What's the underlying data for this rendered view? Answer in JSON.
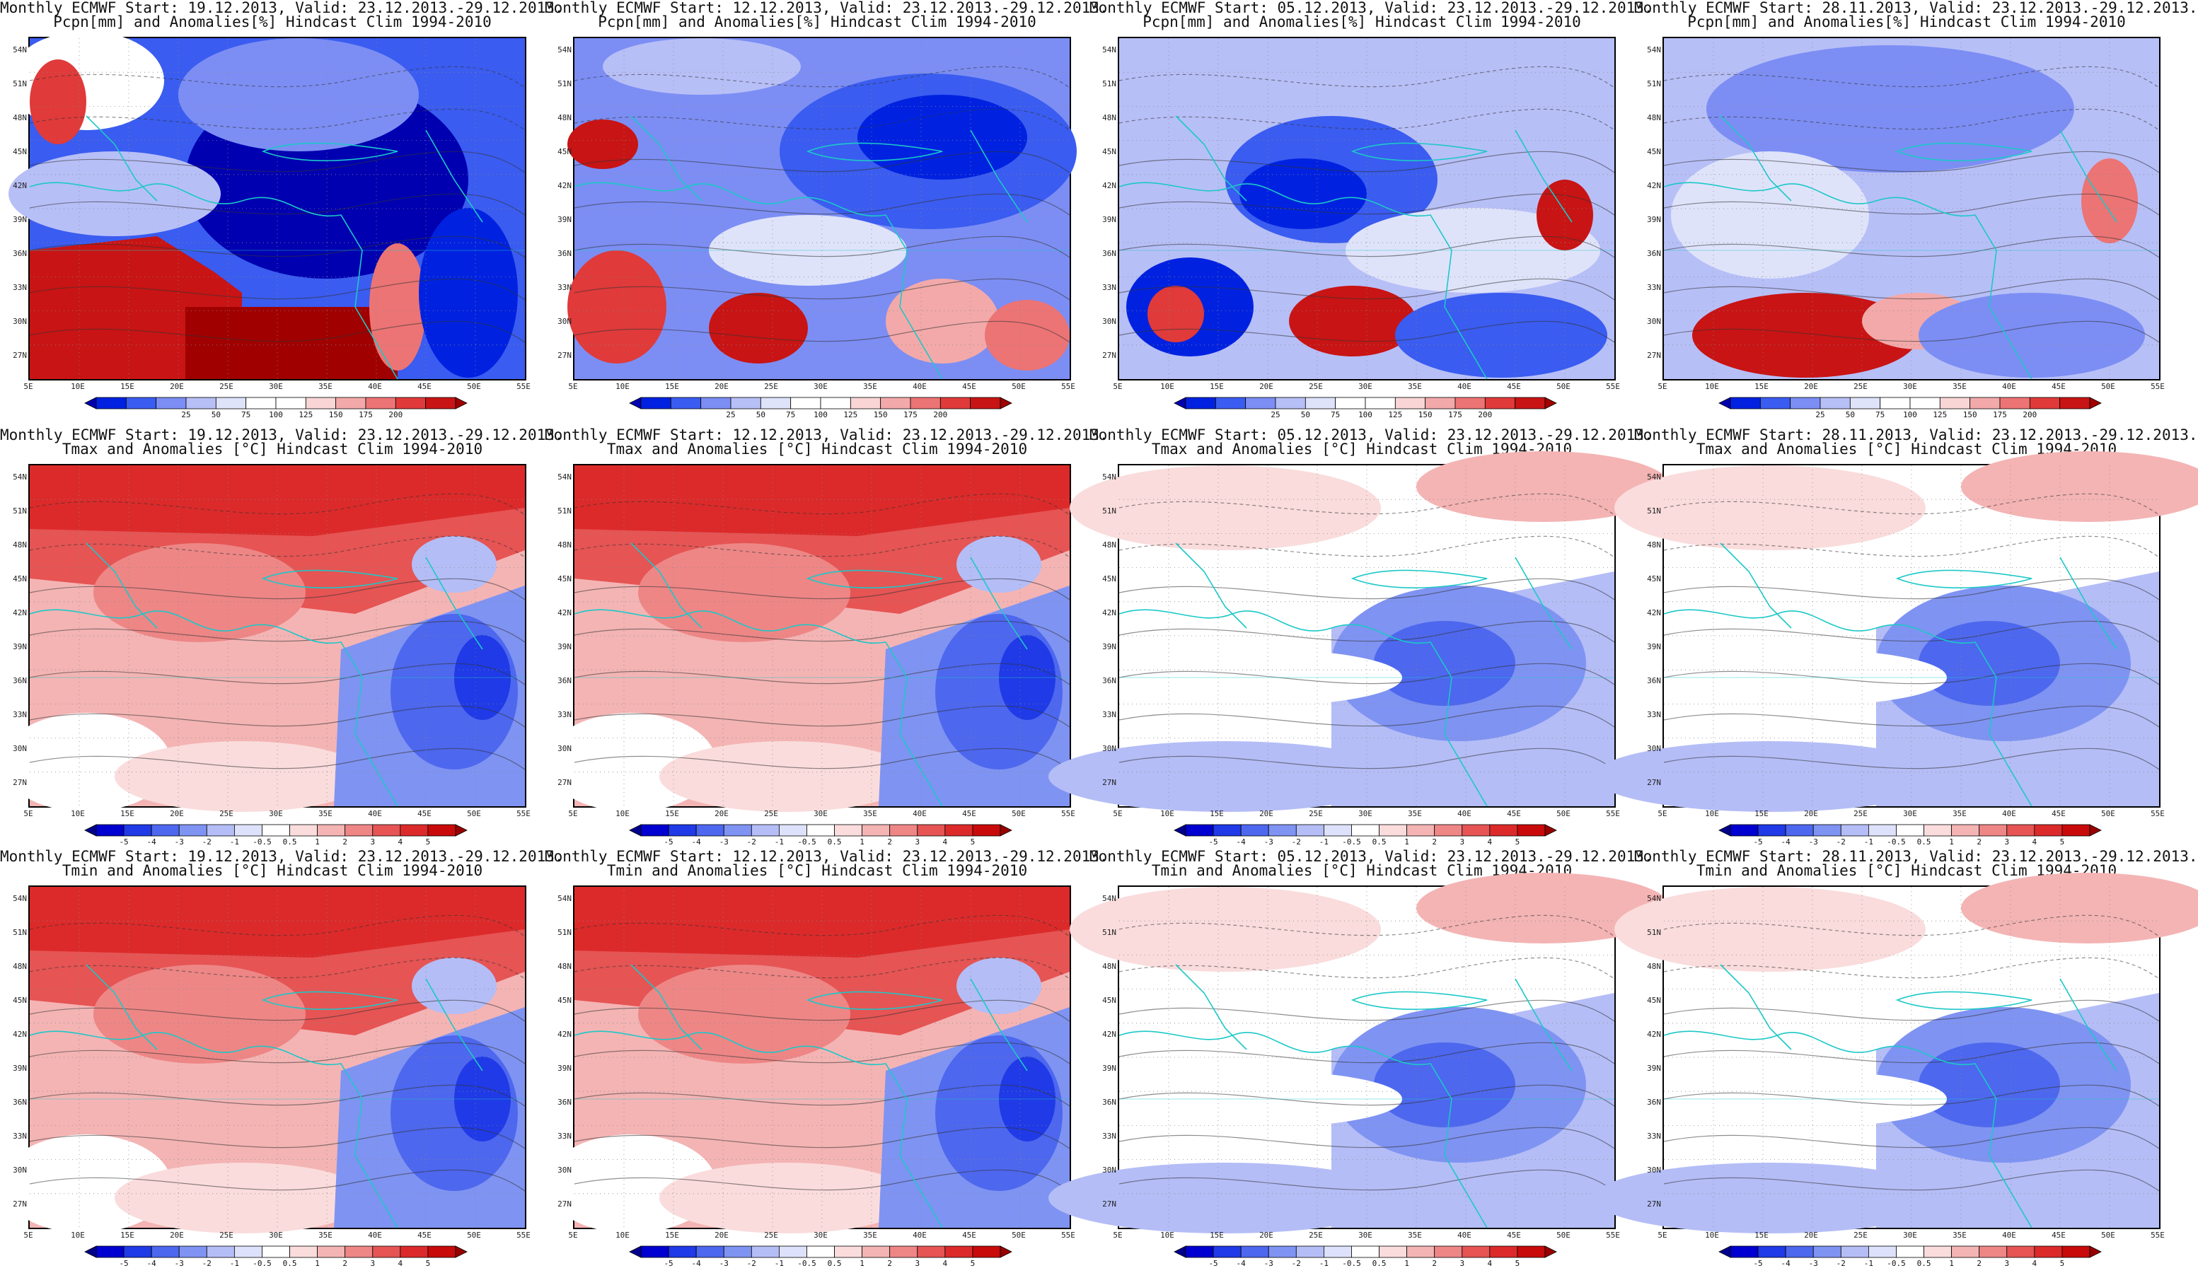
{
  "lat_ticks": [
    "54N",
    "51N",
    "48N",
    "45N",
    "42N",
    "39N",
    "36N",
    "33N",
    "30N",
    "27N"
  ],
  "lon_ticks": [
    "5E",
    "10E",
    "15E",
    "20E",
    "25E",
    "30E",
    "35E",
    "40E",
    "45E",
    "50E",
    "55E"
  ],
  "colorbars": {
    "pcpn": {
      "labels": [
        "25",
        "50",
        "75",
        "100",
        "125",
        "150",
        "175",
        "200"
      ],
      "colors": [
        "#0000b0",
        "#0022e0",
        "#3a5cf0",
        "#7c8ef4",
        "#b7bff7",
        "#dfe3fa",
        "#ffffff",
        "#ffffff",
        "#f9d5d5",
        "#f3a9a9",
        "#ec7474",
        "#e03a3a",
        "#c81414",
        "#a00000"
      ]
    },
    "temp": {
      "labels": [
        "-5",
        "-4",
        "-3",
        "-2",
        "-1",
        "-0.5",
        "0.5",
        "1",
        "2",
        "3",
        "4",
        "5"
      ],
      "colors": [
        "#00008c",
        "#0000d0",
        "#1f3ae6",
        "#4d67ee",
        "#7f93f2",
        "#b4bdf6",
        "#dde1fa",
        "#ffffff",
        "#fadcdc",
        "#f4b4b4",
        "#ee8686",
        "#e65454",
        "#dc2a2a",
        "#c80a0a",
        "#980000"
      ]
    }
  },
  "panels": [
    {
      "row": 0,
      "col": 0,
      "line1": "Monthly ECMWF Start: 19.12.2013, Valid: 23.12.2013.-29.12.2013.",
      "line2": "Pcpn[mm] and Anomalies[%] Hindcast Clim 1994-2010",
      "kind": "pcpn",
      "scheme": "pcpn-a"
    },
    {
      "row": 0,
      "col": 1,
      "line1": "Monthly ECMWF Start: 12.12.2013, Valid: 23.12.2013.-29.12.2013.",
      "line2": "Pcpn[mm] and Anomalies[%] Hindcast Clim 1994-2010",
      "kind": "pcpn",
      "scheme": "pcpn-b"
    },
    {
      "row": 0,
      "col": 2,
      "line1": "Monthly ECMWF Start: 05.12.2013, Valid: 23.12.2013.-29.12.2013.",
      "line2": "Pcpn[mm] and Anomalies[%] Hindcast Clim 1994-2010",
      "kind": "pcpn",
      "scheme": "pcpn-c"
    },
    {
      "row": 0,
      "col": 3,
      "line1": "Monthly ECMWF Start: 28.11.2013, Valid: 23.12.2013.-29.12.2013.",
      "line2": "Pcpn[mm] and Anomalies[%] Hindcast Clim 1994-2010",
      "kind": "pcpn",
      "scheme": "pcpn-d"
    },
    {
      "row": 1,
      "col": 0,
      "line1": "Monthly ECMWF Start: 19.12.2013, Valid: 23.12.2013.-29.12.2013.",
      "line2": "Tmax and Anomalies [°C] Hindcast Clim 1994-2010",
      "kind": "temp",
      "scheme": "warm"
    },
    {
      "row": 1,
      "col": 1,
      "line1": "Monthly ECMWF Start: 12.12.2013, Valid: 23.12.2013.-29.12.2013.",
      "line2": "Tmax and Anomalies [°C] Hindcast Clim 1994-2010",
      "kind": "temp",
      "scheme": "warm"
    },
    {
      "row": 1,
      "col": 2,
      "line1": "Monthly ECMWF Start: 05.12.2013, Valid: 23.12.2013.-29.12.2013.",
      "line2": "Tmax and Anomalies [°C] Hindcast Clim 1994-2010",
      "kind": "temp",
      "scheme": "cool"
    },
    {
      "row": 1,
      "col": 3,
      "line1": "Monthly ECMWF Start: 28.11.2013, Valid: 23.12.2013.-29.12.2013.",
      "line2": "Tmax and Anomalies [°C] Hindcast Clim 1994-2010",
      "kind": "temp",
      "scheme": "cool"
    },
    {
      "row": 2,
      "col": 0,
      "line1": "Monthly ECMWF Start: 19.12.2013, Valid: 23.12.2013.-29.12.2013.",
      "line2": "Tmin and Anomalies [°C] Hindcast Clim 1994-2010",
      "kind": "temp",
      "scheme": "warm"
    },
    {
      "row": 2,
      "col": 1,
      "line1": "Monthly ECMWF Start: 12.12.2013, Valid: 23.12.2013.-29.12.2013.",
      "line2": "Tmin and Anomalies [°C] Hindcast Clim 1994-2010",
      "kind": "temp",
      "scheme": "warm"
    },
    {
      "row": 2,
      "col": 2,
      "line1": "Monthly ECMWF Start: 05.12.2013, Valid: 23.12.2013.-29.12.2013.",
      "line2": "Tmin and Anomalies [°C] Hindcast Clim 1994-2010",
      "kind": "temp",
      "scheme": "cool"
    },
    {
      "row": 2,
      "col": 3,
      "line1": "Monthly ECMWF Start: 28.11.2013, Valid: 23.12.2013.-29.12.2013.",
      "line2": "Tmin and Anomalies [°C] Hindcast Clim 1994-2010",
      "kind": "temp",
      "scheme": "cool"
    }
  ]
}
